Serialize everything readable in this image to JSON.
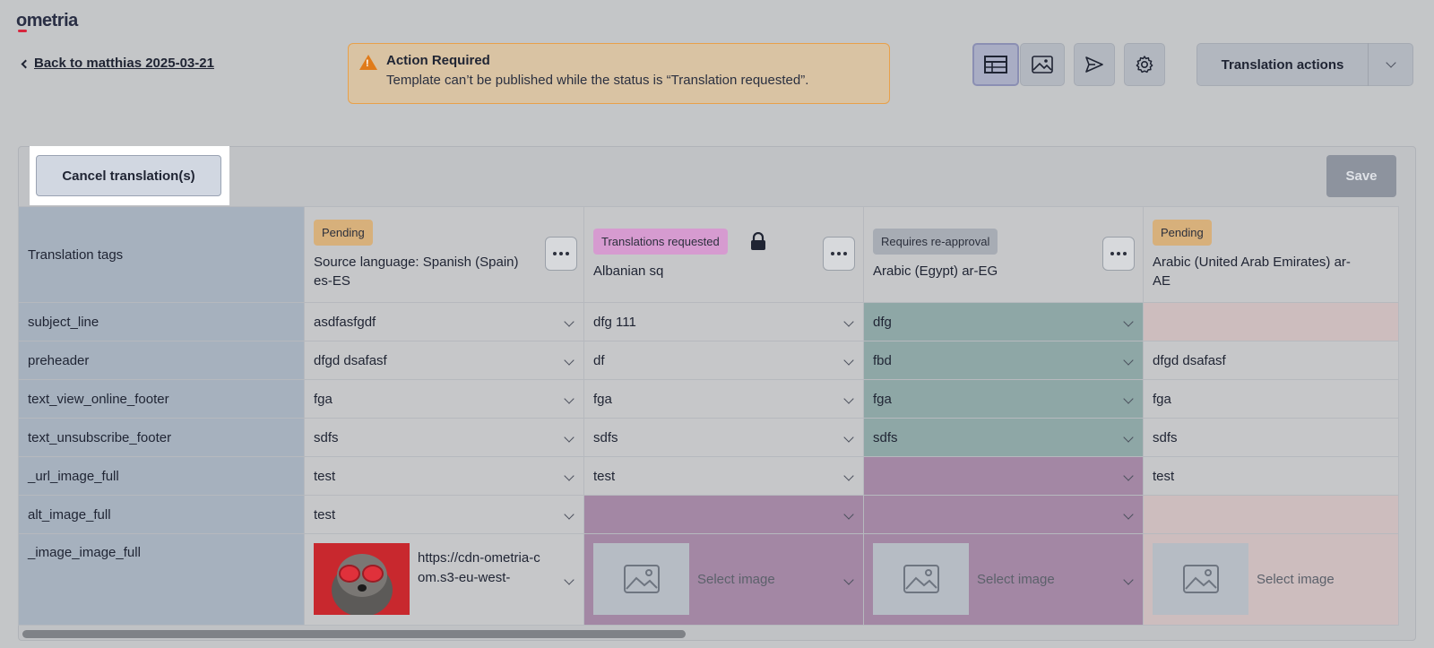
{
  "app": {
    "logo": "ometria"
  },
  "nav": {
    "back_label": "Back to matthias 2025-03-21"
  },
  "alert": {
    "title": "Action Required",
    "message": "Template can’t be published while the status is “Translation requested”."
  },
  "toolbar": {
    "table_view_icon": "table-icon",
    "image_view_icon": "image-icon",
    "send_icon": "send-icon",
    "settings_icon": "gear-icon",
    "translation_actions_label": "Translation actions"
  },
  "panel": {
    "cancel_label": "Cancel translation(s)",
    "save_label": "Save"
  },
  "table": {
    "header_label": "Translation tags",
    "columns": [
      {
        "status": "Pending",
        "name": "Source language: Spanish (Spain) es-ES"
      },
      {
        "status": "Translations requested",
        "name": "Albanian sq",
        "locked": true
      },
      {
        "status": "Requires re-approval",
        "name": "Arabic (Egypt) ar-EG"
      },
      {
        "status": "Pending",
        "name": "Arabic (United Arab Emirates) ar-AE"
      }
    ],
    "rows": [
      {
        "tag": "subject_line",
        "values": [
          "asdfasfgdf",
          "dfg 111",
          "dfg",
          ""
        ]
      },
      {
        "tag": "preheader",
        "values": [
          "dfgd dsafasf",
          "df",
          "fbd",
          "dfgd dsafasf"
        ]
      },
      {
        "tag": "text_view_online_footer",
        "values": [
          "fga",
          "fga",
          "fga",
          "fga"
        ]
      },
      {
        "tag": "text_unsubscribe_footer",
        "values": [
          "sdfs",
          "sdfs",
          "sdfs",
          "sdfs"
        ]
      },
      {
        "tag": "_url_image_full",
        "values": [
          "test",
          "test",
          "",
          "test"
        ]
      },
      {
        "tag": "alt_image_full",
        "values": [
          "test",
          "",
          "",
          ""
        ]
      }
    ],
    "image_row": {
      "tag": "_image_image_full",
      "source_url": "https://cdn-ometria-com.s3-eu-west-",
      "select_label": "Select image"
    }
  },
  "colors": {
    "accent": "#2a2f45",
    "teal_cell": "#8ea7a6",
    "pink_cell": "#a387a4",
    "rose_cell": "#cdbdbe"
  }
}
